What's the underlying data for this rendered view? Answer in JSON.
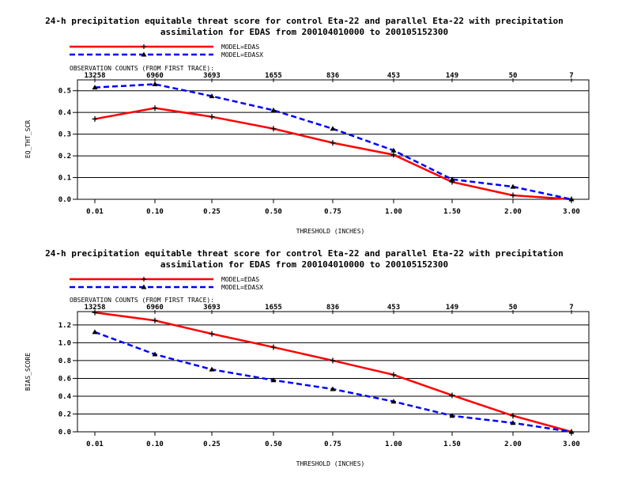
{
  "chart_data": [
    {
      "type": "line",
      "title_line1": "24-h precipitation equitable threat score for control Eta-22 and parallel Eta-22 with precipitation",
      "title_line2": "assimilation for EDAS from 200104010000 to 200105152300",
      "xlabel": "THRESHOLD (INCHES)",
      "ylabel": "EQ_THT_SCR",
      "categories": [
        "0.01",
        "0.10",
        "0.25",
        "0.50",
        "0.75",
        "1.00",
        "1.50",
        "2.00",
        "3.00"
      ],
      "obs_counts_label": "OBSERVATION COUNTS (FROM FIRST TRACE):",
      "obs_counts": [
        "13258",
        "6960",
        "3693",
        "1655",
        "836",
        "453",
        "149",
        "50",
        "7"
      ],
      "ylim": [
        0,
        0.55
      ],
      "yticks": [
        "0.0",
        "0.1",
        "0.2",
        "0.3",
        "0.4",
        "0.5"
      ],
      "ytick_values": [
        0,
        0.1,
        0.2,
        0.3,
        0.4,
        0.5
      ],
      "grid": "horizontal",
      "series": [
        {
          "name": "MODEL=EDAS",
          "color": "#ff0000",
          "dash": "solid",
          "marker": "plus",
          "values": [
            0.37,
            0.42,
            0.38,
            0.325,
            0.26,
            0.205,
            0.08,
            0.018,
            0.0
          ]
        },
        {
          "name": "MODEL=EDASX",
          "color": "#0000ff",
          "dash": "dashed",
          "marker": "triangle",
          "values": [
            0.515,
            0.53,
            0.475,
            0.41,
            0.325,
            0.225,
            0.092,
            0.058,
            0.0
          ]
        }
      ]
    },
    {
      "type": "line",
      "title_line1": "24-h precipitation equitable threat score for control Eta-22 and parallel Eta-22 with precipitation",
      "title_line2": "assimilation for EDAS from 200104010000 to 200105152300",
      "xlabel": "THRESHOLD (INCHES)",
      "ylabel": "BIAS_SCORE",
      "categories": [
        "0.01",
        "0.10",
        "0.25",
        "0.50",
        "0.75",
        "1.00",
        "1.50",
        "2.00",
        "3.00"
      ],
      "obs_counts_label": "OBSERVATION COUNTS (FROM FIRST TRACE):",
      "obs_counts": [
        "13258",
        "6960",
        "3693",
        "1655",
        "836",
        "453",
        "149",
        "50",
        "7"
      ],
      "ylim": [
        0,
        1.35
      ],
      "yticks": [
        "0.0",
        "0.2",
        "0.4",
        "0.6",
        "0.8",
        "1.0",
        "1.2"
      ],
      "ytick_values": [
        0,
        0.2,
        0.4,
        0.6,
        0.8,
        1.0,
        1.2
      ],
      "grid": "horizontal",
      "series": [
        {
          "name": "MODEL=EDAS",
          "color": "#ff0000",
          "dash": "solid",
          "marker": "plus",
          "values": [
            1.34,
            1.25,
            1.1,
            0.95,
            0.8,
            0.64,
            0.41,
            0.18,
            0.0
          ]
        },
        {
          "name": "MODEL=EDASX",
          "color": "#0000ff",
          "dash": "dashed",
          "marker": "triangle",
          "values": [
            1.12,
            0.87,
            0.7,
            0.58,
            0.48,
            0.34,
            0.18,
            0.1,
            0.0
          ]
        }
      ]
    }
  ]
}
